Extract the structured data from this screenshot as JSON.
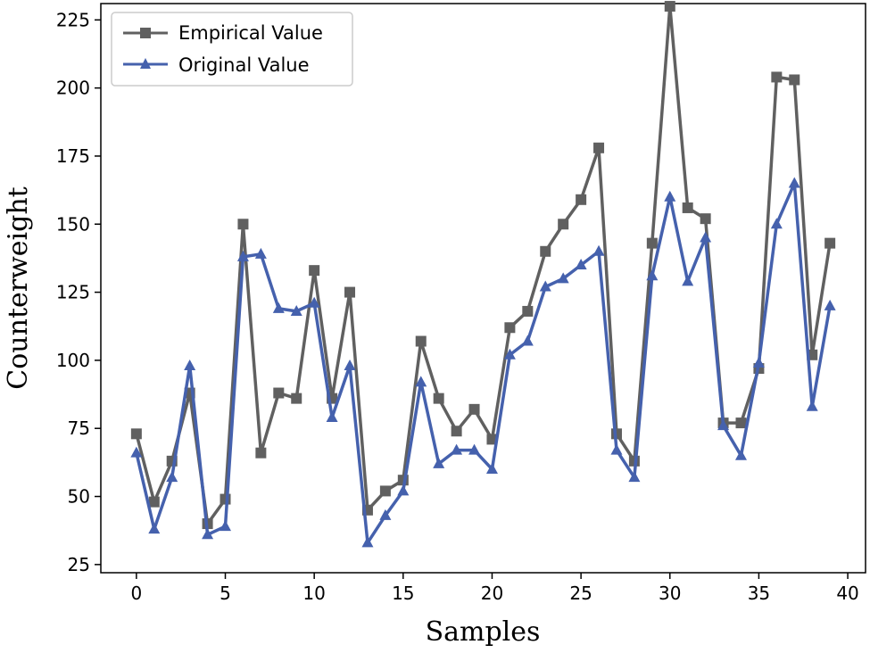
{
  "chart_data": {
    "type": "line",
    "title": "",
    "xlabel": "Samples",
    "ylabel": "Counterweight",
    "xlim": [
      -2,
      41
    ],
    "ylim": [
      22,
      231
    ],
    "xticks": [
      0,
      5,
      10,
      15,
      20,
      25,
      30,
      35,
      40
    ],
    "yticks": [
      25,
      50,
      75,
      100,
      125,
      150,
      175,
      200,
      225
    ],
    "x": [
      0,
      1,
      2,
      3,
      4,
      5,
      6,
      7,
      8,
      9,
      10,
      11,
      12,
      13,
      14,
      15,
      16,
      17,
      18,
      19,
      20,
      21,
      22,
      23,
      24,
      25,
      26,
      27,
      28,
      29,
      30,
      31,
      32,
      33,
      34,
      35,
      36,
      37,
      38,
      39
    ],
    "series": [
      {
        "name": "Empirical Value",
        "color": "#606060",
        "marker": "square",
        "values": [
          73,
          48,
          63,
          88,
          40,
          49,
          150,
          66,
          88,
          86,
          133,
          86,
          125,
          45,
          52,
          56,
          107,
          86,
          74,
          82,
          71,
          112,
          118,
          140,
          150,
          159,
          178,
          73,
          63,
          143,
          230,
          156,
          152,
          77,
          77,
          97,
          204,
          203,
          102,
          143
        ]
      },
      {
        "name": "Original Value",
        "color": "#4561ad",
        "marker": "triangle",
        "values": [
          66,
          38,
          57,
          98,
          36,
          39,
          138,
          139,
          119,
          118,
          121,
          79,
          98,
          33,
          43,
          52,
          92,
          62,
          67,
          67,
          60,
          102,
          107,
          127,
          130,
          135,
          140,
          67,
          57,
          131,
          160,
          129,
          145,
          76,
          65,
          99,
          150,
          165,
          83,
          120
        ]
      }
    ],
    "legend": {
      "position": "top-left",
      "entries": [
        "Empirical Value",
        "Original Value"
      ]
    }
  }
}
